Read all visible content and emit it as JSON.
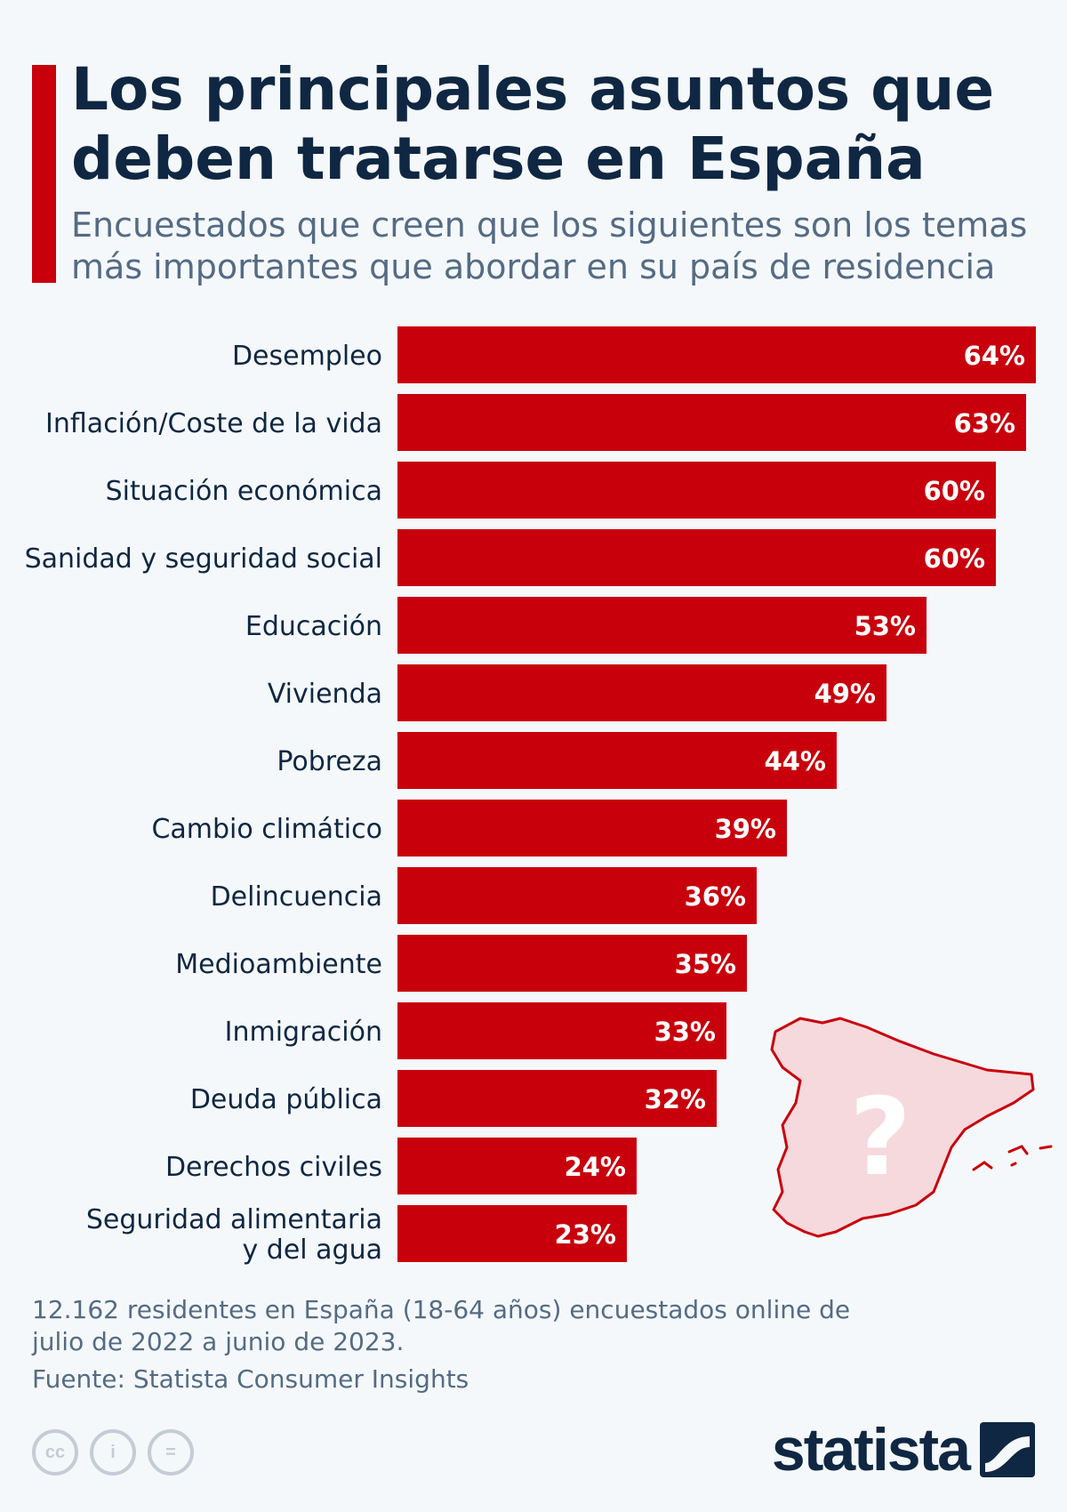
{
  "header": {
    "title": "Los principales asuntos que deben tratarse en España",
    "subtitle": "Encuestados que creen que los siguientes son los temas más importantes que abordar en su país de residencia"
  },
  "chart_data": {
    "type": "bar",
    "orientation": "horizontal",
    "categories": [
      "Desempleo",
      "Inflación/Coste de la vida",
      "Situación económica",
      "Sanidad y seguridad social",
      "Educación",
      "Vivienda",
      "Pobreza",
      "Cambio climático",
      "Delincuencia",
      "Medioambiente",
      "Inmigración",
      "Deuda pública",
      "Derechos civiles",
      "Seguridad alimentaria y del agua"
    ],
    "values": [
      64,
      63,
      60,
      60,
      53,
      49,
      44,
      39,
      36,
      35,
      33,
      32,
      24,
      23
    ],
    "value_labels": [
      "64%",
      "63%",
      "60%",
      "60%",
      "53%",
      "49%",
      "44%",
      "39%",
      "36%",
      "35%",
      "33%",
      "32%",
      "24%",
      "23%"
    ],
    "xlim": [
      0,
      64
    ],
    "grid": false,
    "colors": {
      "bar": "#c8000c",
      "bar_label": "#ffffff",
      "category_label": "#0f2742"
    }
  },
  "illustration": {
    "name": "spain-map-icon",
    "symbol": "?",
    "colors": {
      "fill": "#f6d9dc",
      "stroke": "#c8000c",
      "symbol": "#ffffff"
    }
  },
  "footer": {
    "note": "12.162 residentes en España (18-64 años) encuestados online de julio de 2022 a junio de 2023.",
    "source": "Fuente: Statista Consumer Insights",
    "license_icons": [
      "cc",
      "i",
      "="
    ],
    "brand": "statista"
  }
}
